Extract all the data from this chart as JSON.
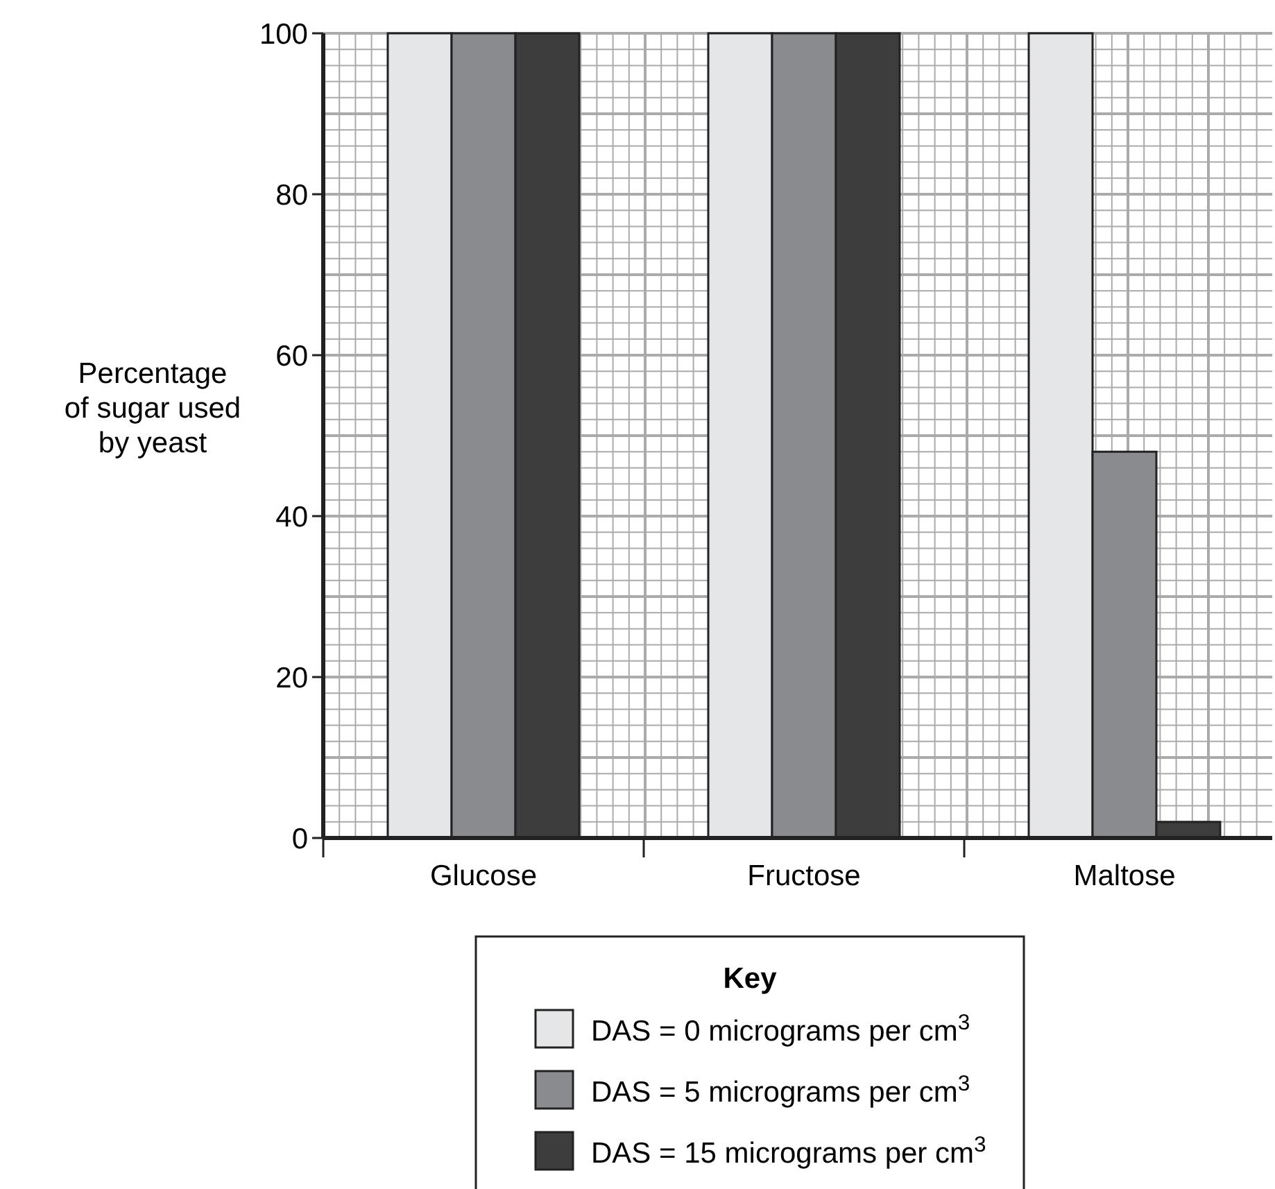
{
  "chart_data": {
    "type": "bar",
    "ylabel": "Percentage\nof sugar used\nby yeast",
    "legend_title": "Key",
    "categories": [
      "Glucose",
      "Fructose",
      "Maltose"
    ],
    "series": [
      {
        "name": "DAS = 0 micrograms per cm$^{3}$",
        "color": "#e5e6e8",
        "values": [
          100,
          100,
          100
        ]
      },
      {
        "name": "DAS = 5 micrograms per cm$^{3}$",
        "color": "#8a8b8e",
        "values": [
          100,
          100,
          48
        ]
      },
      {
        "name": "DAS = 15 micrograms per cm$^{3}$",
        "color": "#3d3d3d",
        "values": [
          100,
          100,
          2
        ]
      }
    ],
    "ylim": [
      0,
      100
    ],
    "yticks": [
      0,
      20,
      40,
      60,
      80,
      100
    ],
    "grid": true,
    "legend": "bottom"
  }
}
